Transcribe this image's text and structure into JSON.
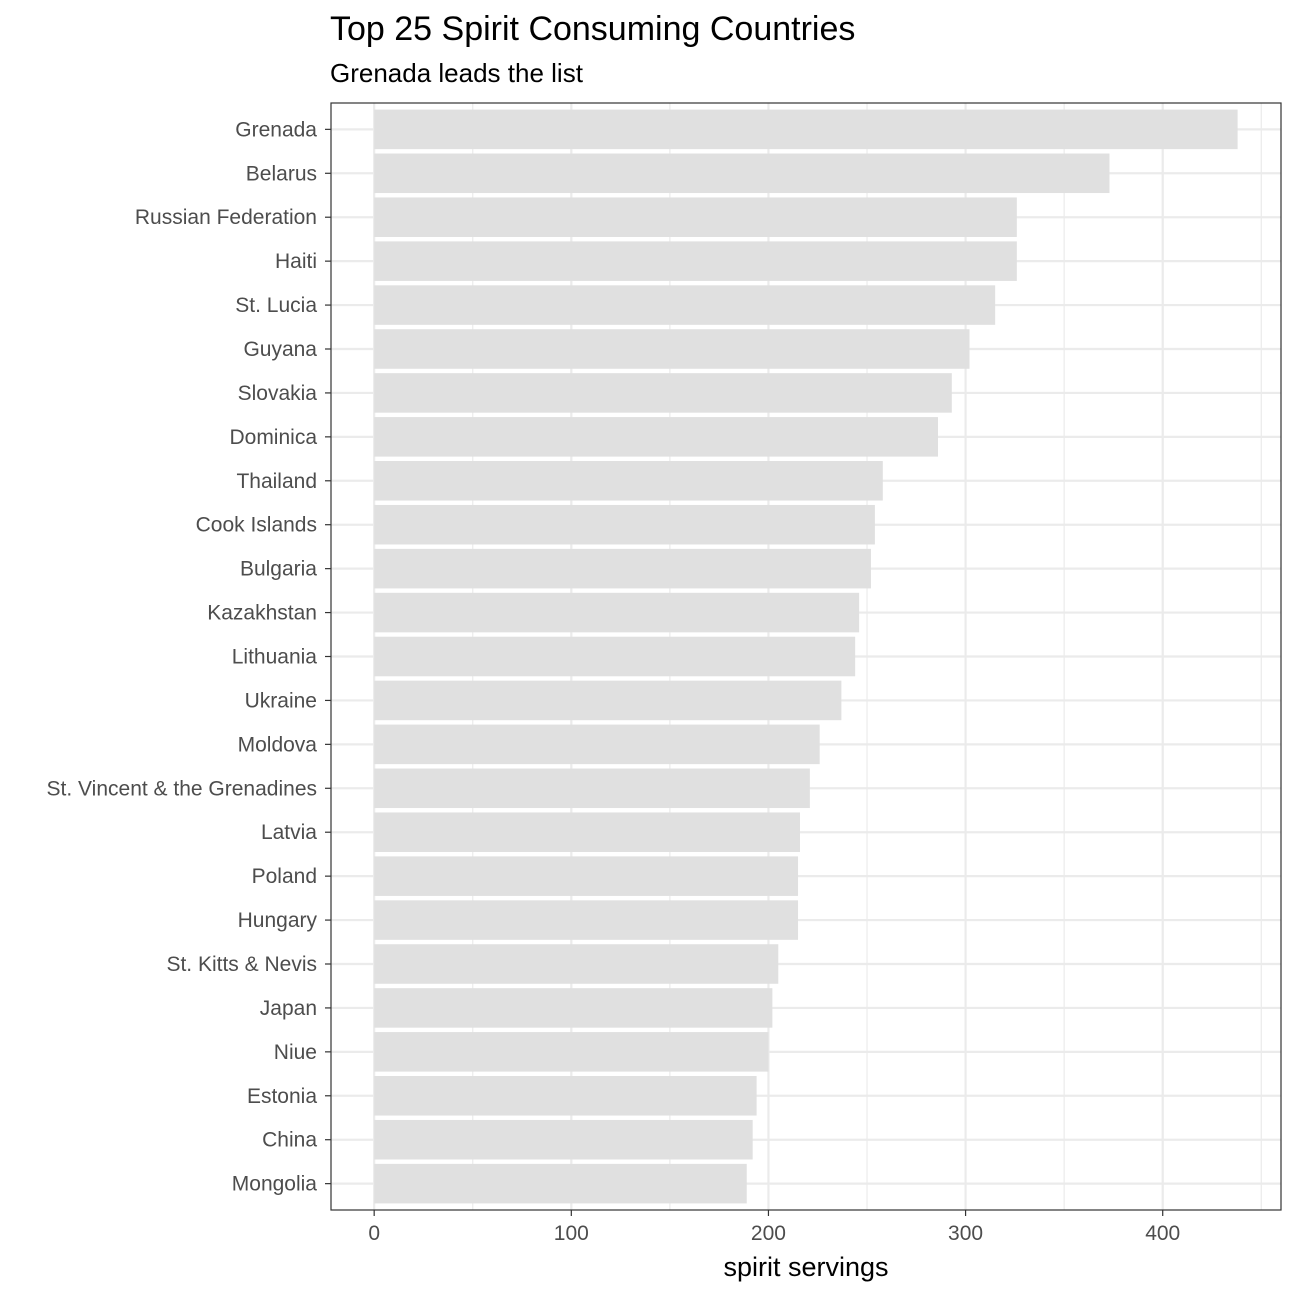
{
  "chart_data": {
    "type": "bar",
    "orientation": "horizontal",
    "title": "Top 25 Spirit Consuming Countries",
    "subtitle": "Grenada leads the list",
    "xlabel": "spirit servings",
    "ylabel": "",
    "xlim": [
      -21.9,
      460
    ],
    "xticks": [
      0,
      100,
      200,
      300,
      400
    ],
    "grid": true,
    "bar_color": "#e0e0e0",
    "categories": [
      "Grenada",
      "Belarus",
      "Russian Federation",
      "Haiti",
      "St. Lucia",
      "Guyana",
      "Slovakia",
      "Dominica",
      "Thailand",
      "Cook Islands",
      "Bulgaria",
      "Kazakhstan",
      "Lithuania",
      "Ukraine",
      "Moldova",
      "St. Vincent & the Grenadines",
      "Latvia",
      "Poland",
      "Hungary",
      "St. Kitts & Nevis",
      "Japan",
      "Niue",
      "Estonia",
      "China",
      "Mongolia"
    ],
    "values": [
      438,
      373,
      326,
      326,
      315,
      302,
      293,
      286,
      258,
      254,
      252,
      246,
      244,
      237,
      226,
      221,
      216,
      215,
      215,
      205,
      202,
      200,
      194,
      192,
      189
    ]
  }
}
